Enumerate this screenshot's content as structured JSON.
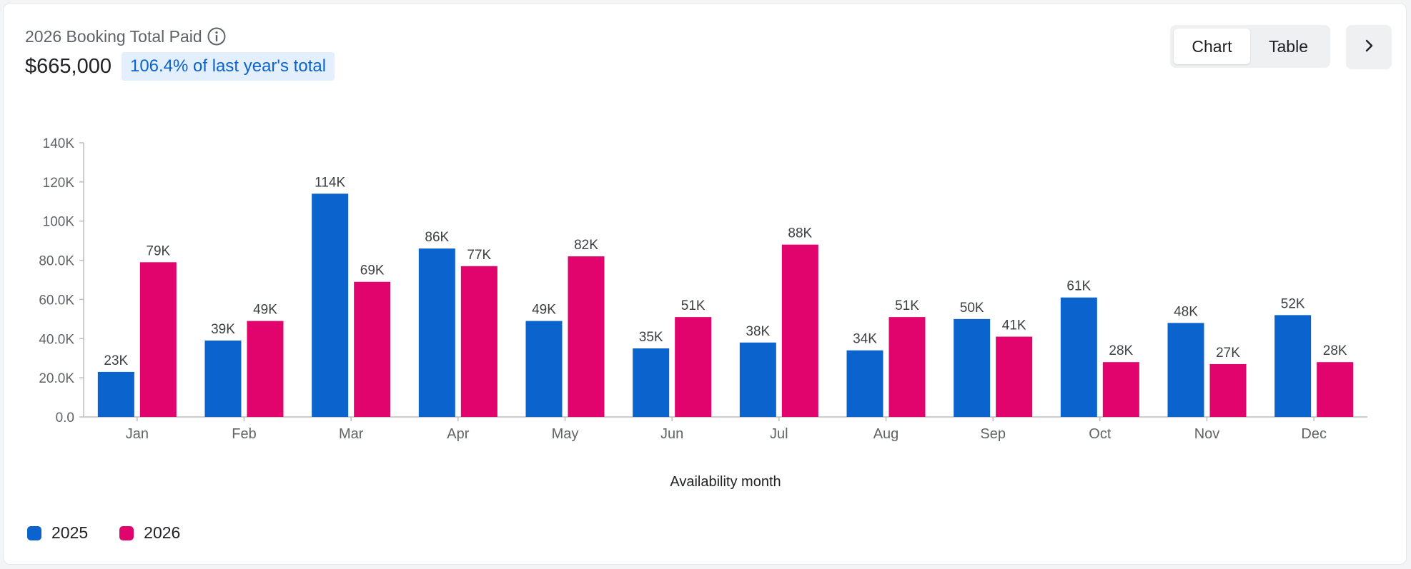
{
  "header": {
    "title": "2026 Booking Total Paid",
    "total": "$665,000",
    "comparison": "106.4% of last year's total",
    "info_icon": "info-circle-icon"
  },
  "toggle": {
    "chart_label": "Chart",
    "table_label": "Table",
    "selected": "Chart"
  },
  "next_icon": "chevron-right-icon",
  "colors": {
    "series_2025": "#0b63ce",
    "series_2026": "#e0046c",
    "badge_bg": "#e3effd",
    "badge_text": "#0b63ce"
  },
  "chart_data": {
    "type": "bar",
    "categories": [
      "Jan",
      "Feb",
      "Mar",
      "Apr",
      "May",
      "Jun",
      "Jul",
      "Aug",
      "Sep",
      "Oct",
      "Nov",
      "Dec"
    ],
    "series": [
      {
        "name": "2025",
        "color": "#0b63ce",
        "values": [
          23000,
          39000,
          114000,
          86000,
          49000,
          35000,
          38000,
          34000,
          50000,
          61000,
          48000,
          52000
        ],
        "labels": [
          "23K",
          "39K",
          "114K",
          "86K",
          "49K",
          "35K",
          "38K",
          "34K",
          "50K",
          "61K",
          "48K",
          "52K"
        ]
      },
      {
        "name": "2026",
        "color": "#e0046c",
        "values": [
          79000,
          49000,
          69000,
          77000,
          82000,
          51000,
          88000,
          51000,
          41000,
          28000,
          27000,
          28000
        ],
        "labels": [
          "79K",
          "49K",
          "69K",
          "77K",
          "82K",
          "51K",
          "88K",
          "51K",
          "41K",
          "28K",
          "27K",
          "28K"
        ]
      }
    ],
    "xlabel": "Availability month",
    "ylabel": "",
    "ylim": [
      0,
      140000
    ],
    "yticks": [
      0,
      20000,
      40000,
      60000,
      80000,
      100000,
      120000,
      140000
    ],
    "ytick_labels": [
      "0.0",
      "20.0K",
      "40.0K",
      "60.0K",
      "80.0K",
      "100K",
      "120K",
      "140K"
    ],
    "grid": false,
    "legend_position": "bottom-left"
  }
}
